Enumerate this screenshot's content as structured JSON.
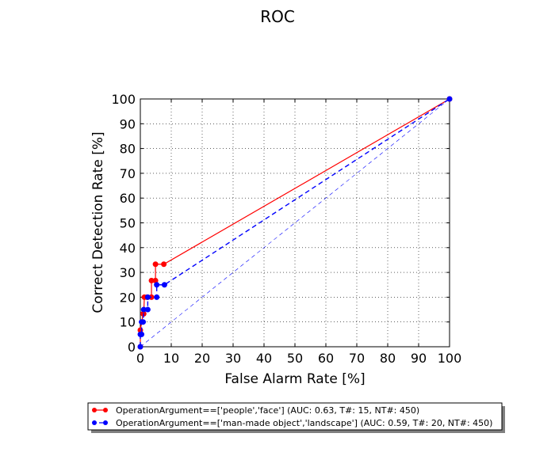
{
  "chart_data": {
    "type": "line",
    "title": "ROC",
    "xlabel": "False Alarm Rate [%]",
    "ylabel": "Correct Detection Rate [%]",
    "xlim": [
      0,
      100
    ],
    "ylim": [
      0,
      100
    ],
    "xticks": [
      0,
      10,
      20,
      30,
      40,
      50,
      60,
      70,
      80,
      90,
      100
    ],
    "yticks": [
      0,
      10,
      20,
      30,
      40,
      50,
      60,
      70,
      80,
      90,
      100
    ],
    "grid": true,
    "legend_position": "bottom",
    "series": [
      {
        "name": "OperationArgument==['people','face'] (AUC: 0.63, T#: 15, NT#: 450)",
        "color": "#ff0000",
        "line_style": "solid",
        "marker": "circle",
        "points": [
          [
            0,
            0
          ],
          [
            0,
            6.7
          ],
          [
            0.9,
            13.3
          ],
          [
            1.1,
            13.3
          ],
          [
            1.3,
            20
          ],
          [
            2.2,
            20
          ],
          [
            3.6,
            20
          ],
          [
            3.6,
            26.7
          ],
          [
            4.9,
            26.7
          ],
          [
            4.9,
            33.3
          ],
          [
            7.6,
            33.3
          ],
          [
            100,
            100
          ]
        ]
      },
      {
        "name": "OperationArgument==['man-made object','landscape'] (AUC: 0.59, T#: 20, NT#: 450)",
        "color": "#0000ff",
        "line_style": "dashed",
        "marker": "circle",
        "points": [
          [
            0,
            0
          ],
          [
            0,
            5
          ],
          [
            0.4,
            5
          ],
          [
            0.4,
            10
          ],
          [
            0.9,
            10
          ],
          [
            1.1,
            15
          ],
          [
            2.4,
            15
          ],
          [
            2.4,
            20
          ],
          [
            5.3,
            20
          ],
          [
            5.3,
            25
          ],
          [
            7.8,
            25
          ],
          [
            100,
            100
          ]
        ]
      },
      {
        "name": "",
        "color": "#0000ff",
        "line_style": "dashed-thin",
        "marker": "none",
        "points": [
          [
            0,
            0
          ],
          [
            100,
            100
          ]
        ]
      }
    ]
  }
}
